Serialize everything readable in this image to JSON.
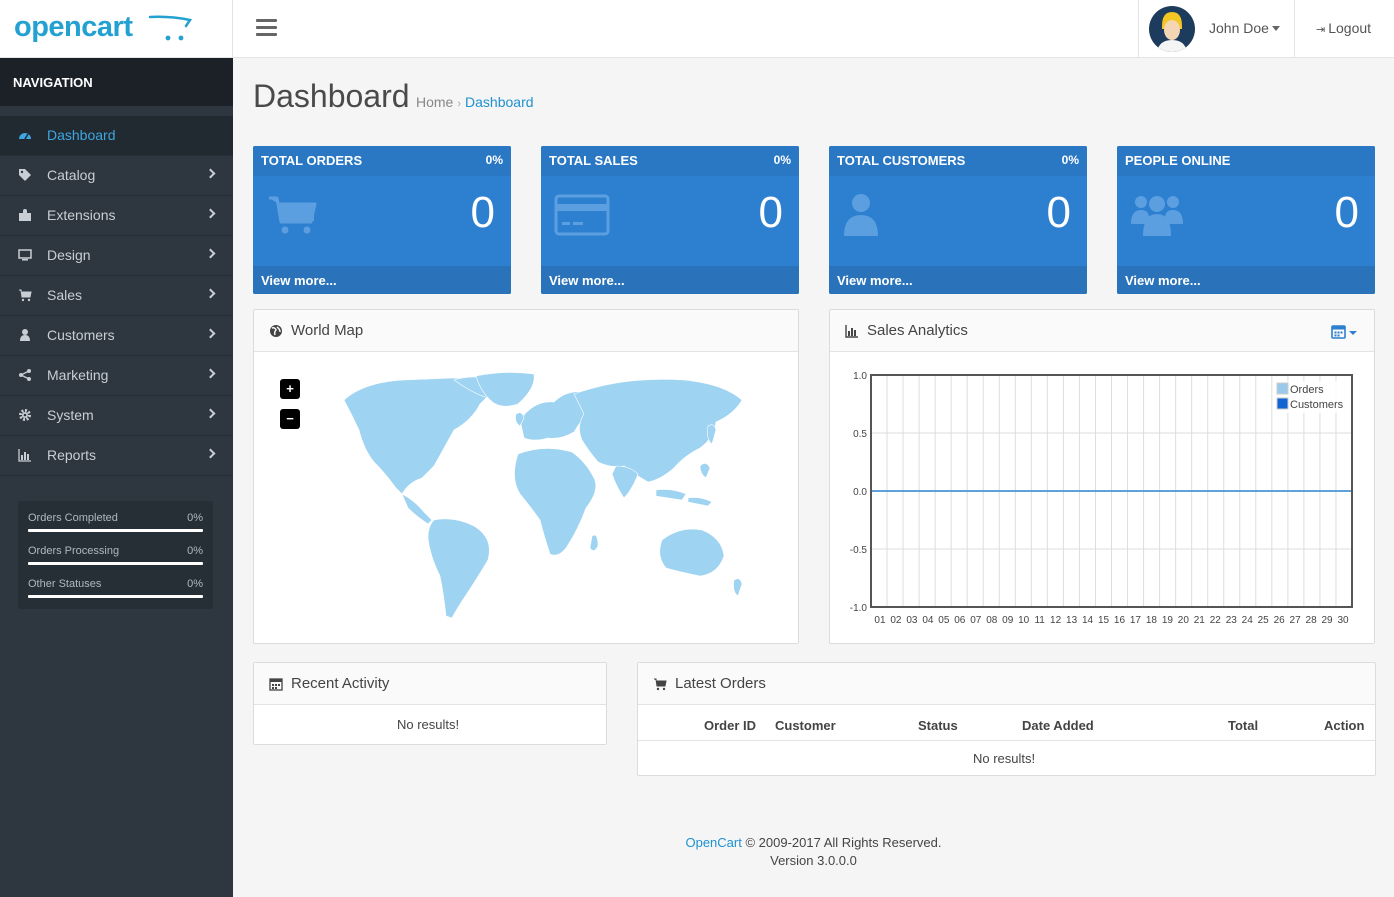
{
  "header": {
    "brand": "opencart",
    "user_name": "John Doe",
    "logout_label": "Logout"
  },
  "sidebar": {
    "title": "NAVIGATION",
    "items": [
      {
        "label": "Dashboard",
        "icon": "dashboard-icon",
        "active": true
      },
      {
        "label": "Catalog",
        "icon": "tags-icon"
      },
      {
        "label": "Extensions",
        "icon": "puzzle-icon"
      },
      {
        "label": "Design",
        "icon": "monitor-icon"
      },
      {
        "label": "Sales",
        "icon": "cart-icon"
      },
      {
        "label": "Customers",
        "icon": "user-icon"
      },
      {
        "label": "Marketing",
        "icon": "share-icon"
      },
      {
        "label": "System",
        "icon": "gear-icon"
      },
      {
        "label": "Reports",
        "icon": "bar-chart-icon"
      }
    ],
    "stats": [
      {
        "label": "Orders Completed",
        "value": "0%",
        "fraction": 0
      },
      {
        "label": "Orders Processing",
        "value": "0%",
        "fraction": 0
      },
      {
        "label": "Other Statuses",
        "value": "0%",
        "fraction": 0
      }
    ]
  },
  "page": {
    "title": "Dashboard",
    "breadcrumb": {
      "home": "Home",
      "current": "Dashboard"
    }
  },
  "tiles": [
    {
      "title": "TOTAL ORDERS",
      "pct": "0%",
      "value": "0",
      "link": "View more..."
    },
    {
      "title": "TOTAL SALES",
      "pct": "0%",
      "value": "0",
      "link": "View more..."
    },
    {
      "title": "TOTAL CUSTOMERS",
      "pct": "0%",
      "value": "0",
      "link": "View more..."
    },
    {
      "title": "PEOPLE ONLINE",
      "pct": "",
      "value": "0",
      "link": "View more..."
    }
  ],
  "map_panel": {
    "title": "World Map",
    "zoom_in": "+",
    "zoom_out": "−"
  },
  "analytics_panel": {
    "title": "Sales Analytics"
  },
  "chart_data": {
    "type": "line",
    "x": [
      "01",
      "02",
      "03",
      "04",
      "05",
      "06",
      "07",
      "08",
      "09",
      "10",
      "11",
      "12",
      "13",
      "14",
      "15",
      "16",
      "17",
      "18",
      "19",
      "20",
      "21",
      "22",
      "23",
      "24",
      "25",
      "26",
      "27",
      "28",
      "29",
      "30"
    ],
    "ylim": [
      -1.0,
      1.0
    ],
    "yticks": [
      "1.0",
      "0.5",
      "0.0",
      "-0.5",
      "-1.0"
    ],
    "series": [
      {
        "name": "Orders",
        "color": "#9bc9ec",
        "values": [
          0,
          0,
          0,
          0,
          0,
          0,
          0,
          0,
          0,
          0,
          0,
          0,
          0,
          0,
          0,
          0,
          0,
          0,
          0,
          0,
          0,
          0,
          0,
          0,
          0,
          0,
          0,
          0,
          0,
          0
        ]
      },
      {
        "name": "Customers",
        "color": "#1065d2",
        "values": [
          0,
          0,
          0,
          0,
          0,
          0,
          0,
          0,
          0,
          0,
          0,
          0,
          0,
          0,
          0,
          0,
          0,
          0,
          0,
          0,
          0,
          0,
          0,
          0,
          0,
          0,
          0,
          0,
          0,
          0
        ]
      }
    ],
    "grid": true,
    "legend": "top-right"
  },
  "activity_panel": {
    "title": "Recent Activity",
    "empty": "No results!"
  },
  "orders_panel": {
    "title": "Latest Orders",
    "columns": [
      "Order ID",
      "Customer",
      "Status",
      "Date Added",
      "Total",
      "Action"
    ],
    "empty": "No results!"
  },
  "footer": {
    "link": "OpenCart",
    "copyright": "© 2009-2017 All Rights Reserved.",
    "version": "Version 3.0.0.0"
  }
}
